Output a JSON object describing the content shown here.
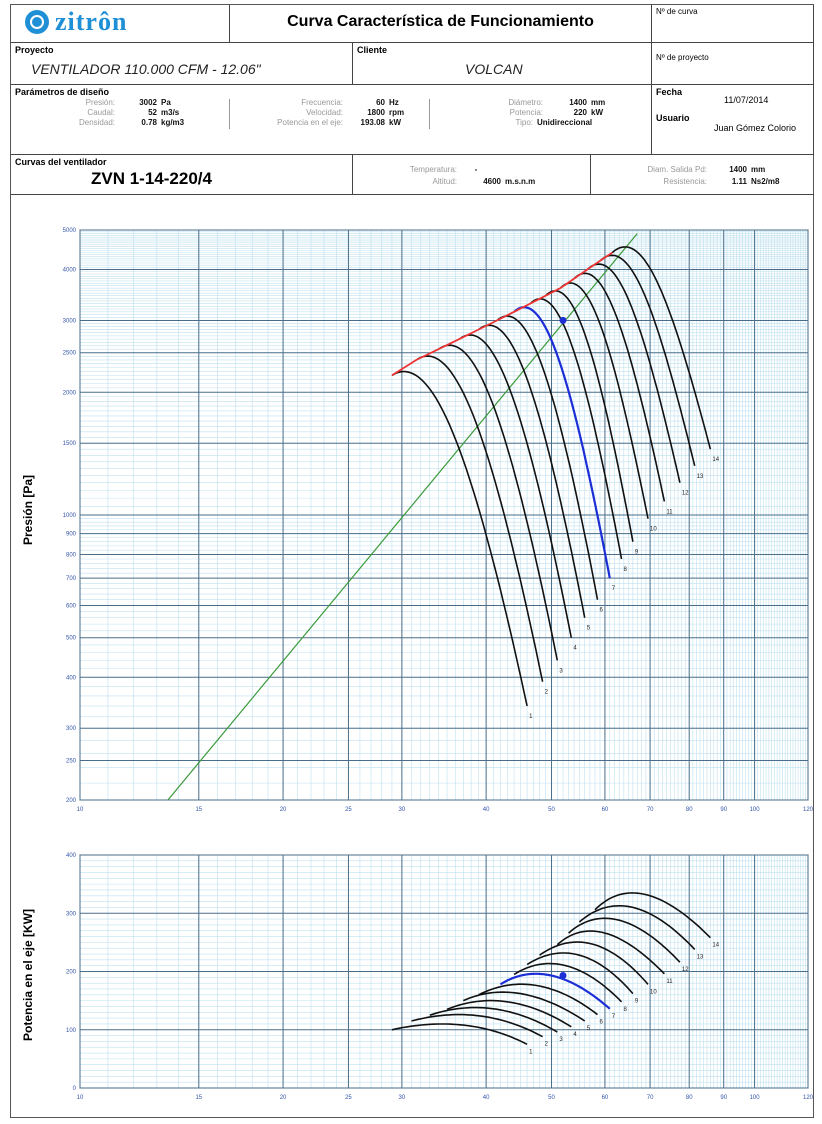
{
  "header": {
    "logo_text": "zitrôn",
    "title": "Curva Característica de Funcionamiento",
    "curve_no_label": "Nº de curva",
    "project_no_label": "Nº de proyecto",
    "project_label": "Proyecto",
    "project_value": "VENTILADOR 110.000 CFM - 12.06\"",
    "client_label": "Cliente",
    "client_value": "VOLCAN",
    "date_label": "Fecha",
    "date_value": "11/07/2014",
    "user_label": "Usuario",
    "user_value": "Juan Gómez Colorio"
  },
  "params": {
    "section_label": "Parámetros de diseño",
    "presion_label": "Presión:",
    "presion_value": "3002",
    "presion_unit": "Pa",
    "caudal_label": "Caudal:",
    "caudal_value": "52",
    "caudal_unit": "m3/s",
    "densidad_label": "Densidad:",
    "densidad_value": "0.78",
    "densidad_unit": "kg/m3",
    "frecuencia_label": "Frecuencia:",
    "frecuencia_value": "60",
    "frecuencia_unit": "Hz",
    "velocidad_label": "Velocidad:",
    "velocidad_value": "1800",
    "velocidad_unit": "rpm",
    "potencia_eje_label": "Potencia en el eje:",
    "potencia_eje_value": "193.08",
    "potencia_eje_unit": "kW",
    "diametro_label": "Diámetro:",
    "diametro_value": "1400",
    "diametro_unit": "mm",
    "potencia_label": "Potencia:",
    "potencia_value": "220",
    "potencia_unit": "kW",
    "tipo_label": "Tipo:",
    "tipo_value": "Unidireccional"
  },
  "fan": {
    "section_label": "Curvas del ventilador",
    "model": "ZVN 1-14-220/4",
    "temperatura_label": "Temperatura:",
    "temperatura_value": "-",
    "altitud_label": "Altitud:",
    "altitud_value": "4600",
    "altitud_unit": "m.s.n.m",
    "diam_salida_label": "Diam. Salida Pd:",
    "diam_salida_value": "1400",
    "diam_salida_unit": "mm",
    "resistencia_label": "Resistencia:",
    "resistencia_value": "1.11",
    "resistencia_unit": "Ns2/m8"
  },
  "chart_data": [
    {
      "type": "line",
      "scale": "log-log",
      "ylabel": "Presión [Pa]",
      "xlim": [
        10,
        120
      ],
      "ylim": [
        200,
        5000
      ],
      "xticks": [
        10,
        15,
        20,
        25,
        30,
        40,
        50,
        60,
        70,
        80,
        90,
        100,
        120
      ],
      "yticks": [
        200,
        250,
        300,
        400,
        500,
        600,
        700,
        800,
        900,
        1000,
        1500,
        2000,
        2500,
        3000,
        4000,
        5000
      ],
      "grid": true,
      "operating_point": {
        "x": 52,
        "y": 3002
      },
      "highlight_curve": 7,
      "curve_labels": [
        "1",
        "2",
        "3",
        "4",
        "5",
        "6",
        "7",
        "8",
        "9",
        "10",
        "11",
        "12",
        "13",
        "14"
      ],
      "curves": [
        {
          "x0": 29,
          "y0": 2200,
          "x1": 46,
          "y1": 340
        },
        {
          "x0": 31.5,
          "y0": 2400,
          "x1": 48.5,
          "y1": 390
        },
        {
          "x0": 34,
          "y0": 2550,
          "x1": 51,
          "y1": 440
        },
        {
          "x0": 36.5,
          "y0": 2700,
          "x1": 53.5,
          "y1": 500
        },
        {
          "x0": 39,
          "y0": 2850,
          "x1": 56,
          "y1": 560
        },
        {
          "x0": 41.5,
          "y0": 3000,
          "x1": 58.5,
          "y1": 620
        },
        {
          "x0": 44,
          "y0": 3150,
          "x1": 61,
          "y1": 700
        },
        {
          "x0": 46.5,
          "y0": 3300,
          "x1": 63.5,
          "y1": 780
        },
        {
          "x0": 49,
          "y0": 3450,
          "x1": 66,
          "y1": 860
        },
        {
          "x0": 51.5,
          "y0": 3600,
          "x1": 69.5,
          "y1": 980
        },
        {
          "x0": 54,
          "y0": 3800,
          "x1": 73.5,
          "y1": 1080
        },
        {
          "x0": 56.5,
          "y0": 4000,
          "x1": 77.5,
          "y1": 1200
        },
        {
          "x0": 59,
          "y0": 4200,
          "x1": 81.5,
          "y1": 1320
        },
        {
          "x0": 61.5,
          "y0": 4400,
          "x1": 86,
          "y1": 1450
        }
      ],
      "surge_line": [
        [
          29,
          2200
        ],
        [
          59,
          4400
        ]
      ],
      "system_curve": [
        [
          13.5,
          200
        ],
        [
          67,
          4900
        ]
      ]
    },
    {
      "type": "line",
      "scale": "log-x",
      "ylabel": "Potencia en el eje [KW]",
      "xlim": [
        10,
        120
      ],
      "ylim": [
        0,
        400
      ],
      "xticks": [
        10,
        15,
        20,
        25,
        30,
        40,
        50,
        60,
        70,
        80,
        90,
        100,
        120
      ],
      "yticks": [
        0,
        100,
        200,
        300,
        400
      ],
      "grid": true,
      "operating_point": {
        "x": 52,
        "y": 193.08
      },
      "highlight_curve": 7,
      "curve_labels": [
        "1",
        "2",
        "3",
        "4",
        "5",
        "6",
        "7",
        "8",
        "9",
        "10",
        "11",
        "12",
        "13",
        "14"
      ],
      "curves": [
        {
          "x0": 29,
          "y0": 100,
          "xp": 37,
          "yp": 108,
          "x1": 46,
          "y1": 75
        },
        {
          "x0": 31,
          "y0": 115,
          "xp": 39,
          "yp": 124,
          "x1": 48.5,
          "y1": 88
        },
        {
          "x0": 33,
          "y0": 125,
          "xp": 41,
          "yp": 136,
          "x1": 51,
          "y1": 96
        },
        {
          "x0": 35,
          "y0": 135,
          "xp": 43,
          "yp": 148,
          "x1": 53.5,
          "y1": 105
        },
        {
          "x0": 37,
          "y0": 150,
          "xp": 45,
          "yp": 162,
          "x1": 56,
          "y1": 115
        },
        {
          "x0": 39,
          "y0": 160,
          "xp": 47.5,
          "yp": 176,
          "x1": 58.5,
          "y1": 126
        },
        {
          "x0": 42,
          "y0": 178,
          "xp": 50,
          "yp": 193,
          "x1": 61,
          "y1": 136
        },
        {
          "x0": 44,
          "y0": 195,
          "xp": 52.5,
          "yp": 210,
          "x1": 63.5,
          "y1": 148
        },
        {
          "x0": 46,
          "y0": 212,
          "xp": 55,
          "yp": 228,
          "x1": 66,
          "y1": 162
        },
        {
          "x0": 48,
          "y0": 228,
          "xp": 57.5,
          "yp": 247,
          "x1": 69.5,
          "y1": 178
        },
        {
          "x0": 51,
          "y0": 246,
          "xp": 60,
          "yp": 266,
          "x1": 73.5,
          "y1": 196
        },
        {
          "x0": 53,
          "y0": 266,
          "xp": 63,
          "yp": 288,
          "x1": 77.5,
          "y1": 216
        },
        {
          "x0": 55,
          "y0": 285,
          "xp": 66,
          "yp": 310,
          "x1": 81.5,
          "y1": 238
        },
        {
          "x0": 58,
          "y0": 306,
          "xp": 69,
          "yp": 332,
          "x1": 86,
          "y1": 258
        }
      ]
    }
  ]
}
